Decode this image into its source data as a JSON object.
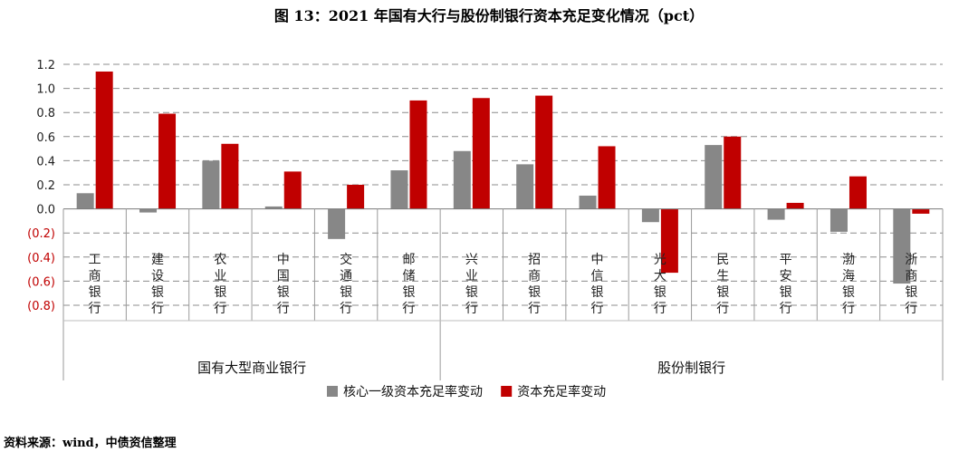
{
  "title": "图 13：2021 年国有大行与股份制银行资本充足变化情况（pct）",
  "source": "资料来源：wind，中债资信整理",
  "colors": {
    "core": "#878787",
    "total": "#C00000",
    "negative_label": "#C00000"
  },
  "chart_data": {
    "type": "bar",
    "ylim": [
      -0.8,
      1.2
    ],
    "yticks": [
      1.2,
      1.0,
      0.8,
      0.6,
      0.4,
      0.2,
      0.0,
      -0.2,
      -0.4,
      -0.6,
      -0.8
    ],
    "ytick_labels": [
      "1.2",
      "1.0",
      "0.8",
      "0.6",
      "0.4",
      "0.2",
      "0.0",
      "(0.2)",
      "(0.4)",
      "(0.6)",
      "(0.8)"
    ],
    "grid": true,
    "legend_position": "bottom",
    "categories": [
      "工商银行",
      "建设银行",
      "农业银行",
      "中国银行",
      "交通银行",
      "邮储银行",
      "兴业银行",
      "招商银行",
      "中信银行",
      "光大银行",
      "民生银行",
      "平安银行",
      "渤海银行",
      "浙商银行"
    ],
    "groups": [
      {
        "label": "国有大型商业银行",
        "count": 6
      },
      {
        "label": "股份制银行",
        "count": 8
      }
    ],
    "series": [
      {
        "name": "核心一级资本充足率变动",
        "color": "#878787",
        "values": [
          0.13,
          -0.03,
          0.4,
          0.02,
          -0.25,
          0.32,
          0.48,
          0.37,
          0.11,
          -0.11,
          0.53,
          -0.09,
          -0.19,
          -0.62
        ]
      },
      {
        "name": "资本充足率变动",
        "color": "#C00000",
        "values": [
          1.14,
          0.79,
          0.54,
          0.31,
          0.2,
          0.9,
          0.92,
          0.94,
          0.52,
          -0.53,
          0.6,
          0.05,
          0.27,
          -0.04
        ]
      }
    ]
  }
}
